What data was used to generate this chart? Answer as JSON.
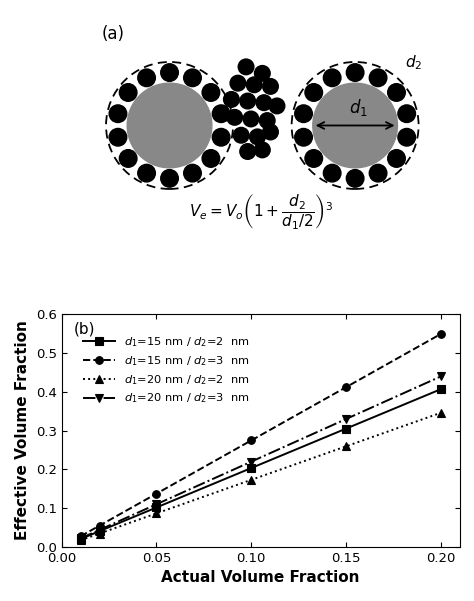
{
  "x_values": [
    0.01,
    0.02,
    0.05,
    0.1,
    0.15,
    0.2
  ],
  "series": [
    {
      "d1": 15,
      "d2": 2,
      "label": "$d_1$=15 nm / $d_2$=2  nm",
      "linestyle": "solid",
      "marker": "s",
      "color": "black"
    },
    {
      "d1": 15,
      "d2": 3,
      "label": "$d_1$=15 nm / $d_2$=3  nm",
      "linestyle": "dashed",
      "marker": "o",
      "color": "black"
    },
    {
      "d1": 20,
      "d2": 2,
      "label": "$d_1$=20 nm / $d_2$=2  nm",
      "linestyle": "dotted",
      "marker": "^",
      "color": "black"
    },
    {
      "d1": 20,
      "d2": 3,
      "label": "$d_1$=20 nm / $d_2$=3  nm",
      "linestyle": "dashdot",
      "marker": "v",
      "color": "black"
    }
  ],
  "xlabel": "Actual Volume Fraction",
  "ylabel": "Effective Volume Fraction",
  "xlim": [
    0.0,
    0.21
  ],
  "ylim": [
    0.0,
    0.6
  ],
  "xticks": [
    0.0,
    0.05,
    0.1,
    0.15,
    0.2
  ],
  "yticks": [
    0.0,
    0.1,
    0.2,
    0.3,
    0.4,
    0.5,
    0.6
  ],
  "panel_label_b": "(b)",
  "panel_label_a": "(a)",
  "figure_width": 4.74,
  "figure_height": 6.01,
  "dpi": 100
}
